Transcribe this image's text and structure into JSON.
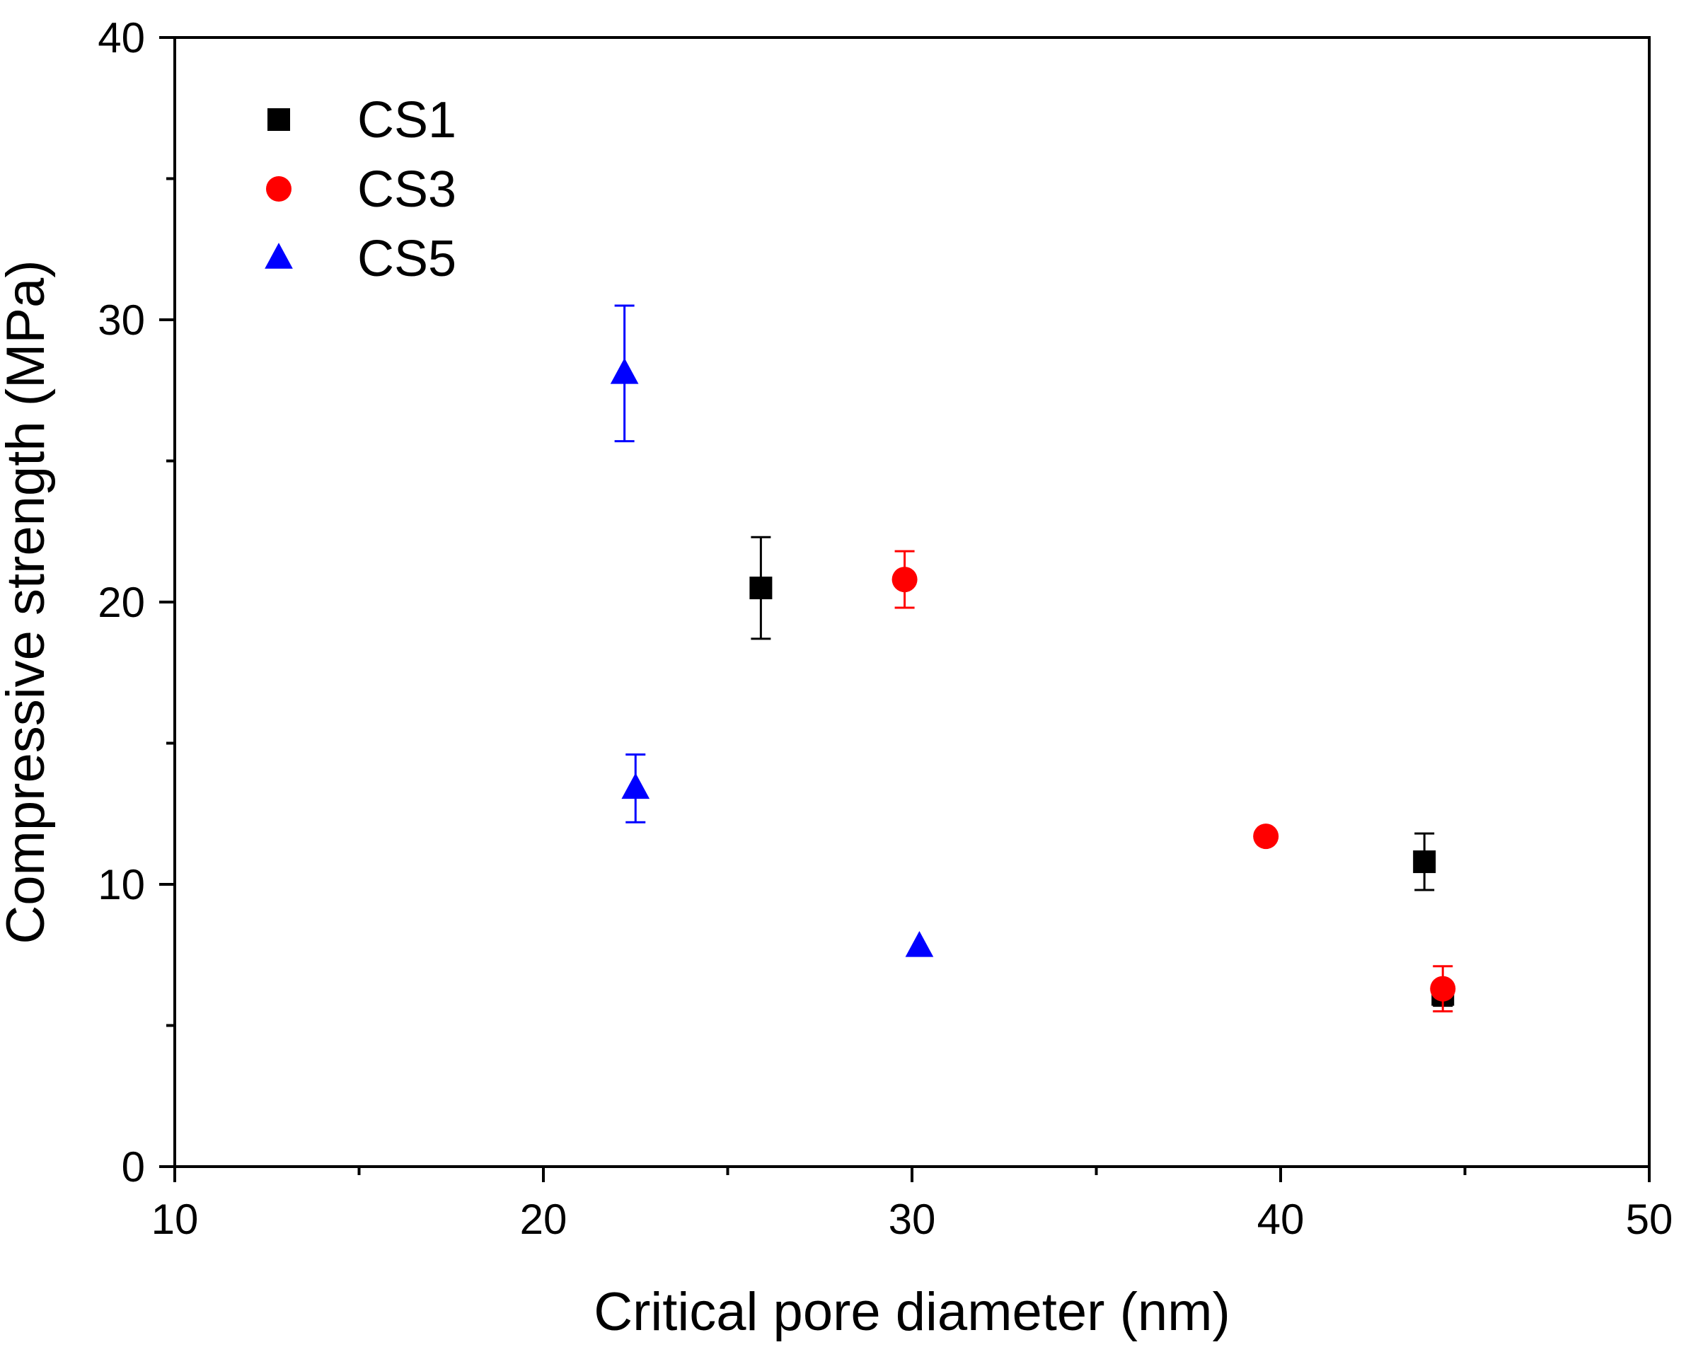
{
  "chart_data": {
    "type": "scatter",
    "title": "",
    "xlabel": "Critical pore diameter (nm)",
    "ylabel": "Compressive strength (MPa)",
    "xlim": [
      10,
      50
    ],
    "ylim": [
      0,
      40
    ],
    "x_major_ticks": [
      10,
      20,
      30,
      40,
      50
    ],
    "x_tick_labels": [
      "10",
      "20",
      "30",
      "40",
      "50"
    ],
    "x_minor_ticks": [
      15,
      25,
      35,
      45
    ],
    "y_major_ticks": [
      0,
      10,
      20,
      30,
      40
    ],
    "y_tick_labels": [
      "0",
      "10",
      "20",
      "30",
      "40"
    ],
    "y_minor_ticks": [
      5,
      15,
      25,
      35
    ],
    "grid": false,
    "legend_position": "top-left",
    "series": [
      {
        "name": "CS1",
        "marker": "square",
        "color": "#000000",
        "points": [
          {
            "x": 25.9,
            "y": 20.5,
            "err": 1.8
          },
          {
            "x": 43.9,
            "y": 10.8,
            "err": 1.0
          },
          {
            "x": 44.4,
            "y": 6.1,
            "err": 0.4
          }
        ]
      },
      {
        "name": "CS3",
        "marker": "circle",
        "color": "#ff0000",
        "points": [
          {
            "x": 29.8,
            "y": 20.8,
            "err": 1.0
          },
          {
            "x": 39.6,
            "y": 11.7,
            "err": 0.0
          },
          {
            "x": 44.4,
            "y": 6.3,
            "err": 0.8
          }
        ]
      },
      {
        "name": "CS5",
        "marker": "triangle",
        "color": "#0000ff",
        "points": [
          {
            "x": 22.2,
            "y": 28.1,
            "err": 2.4
          },
          {
            "x": 22.5,
            "y": 13.4,
            "err": 1.2
          },
          {
            "x": 30.2,
            "y": 7.8,
            "err": 0.0
          }
        ]
      }
    ]
  }
}
